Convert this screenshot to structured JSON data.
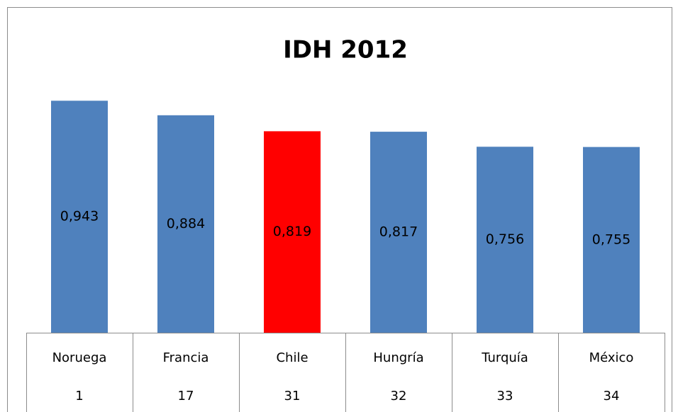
{
  "chart_data": {
    "type": "bar",
    "title": "IDH 2012",
    "categories": [
      "Noruega",
      "Francia",
      "Chile",
      "Hungría",
      "Turquía",
      "México"
    ],
    "ranks": [
      1,
      17,
      31,
      32,
      33,
      34
    ],
    "values": [
      0.943,
      0.884,
      0.819,
      0.817,
      0.756,
      0.755
    ],
    "value_labels": [
      "0,943",
      "0,884",
      "0,819",
      "0,817",
      "0,756",
      "0,755"
    ],
    "colors": [
      "#4f81bd",
      "#4f81bd",
      "#ff0000",
      "#4f81bd",
      "#4f81bd",
      "#4f81bd"
    ],
    "ylim": [
      0,
      1.2
    ]
  }
}
